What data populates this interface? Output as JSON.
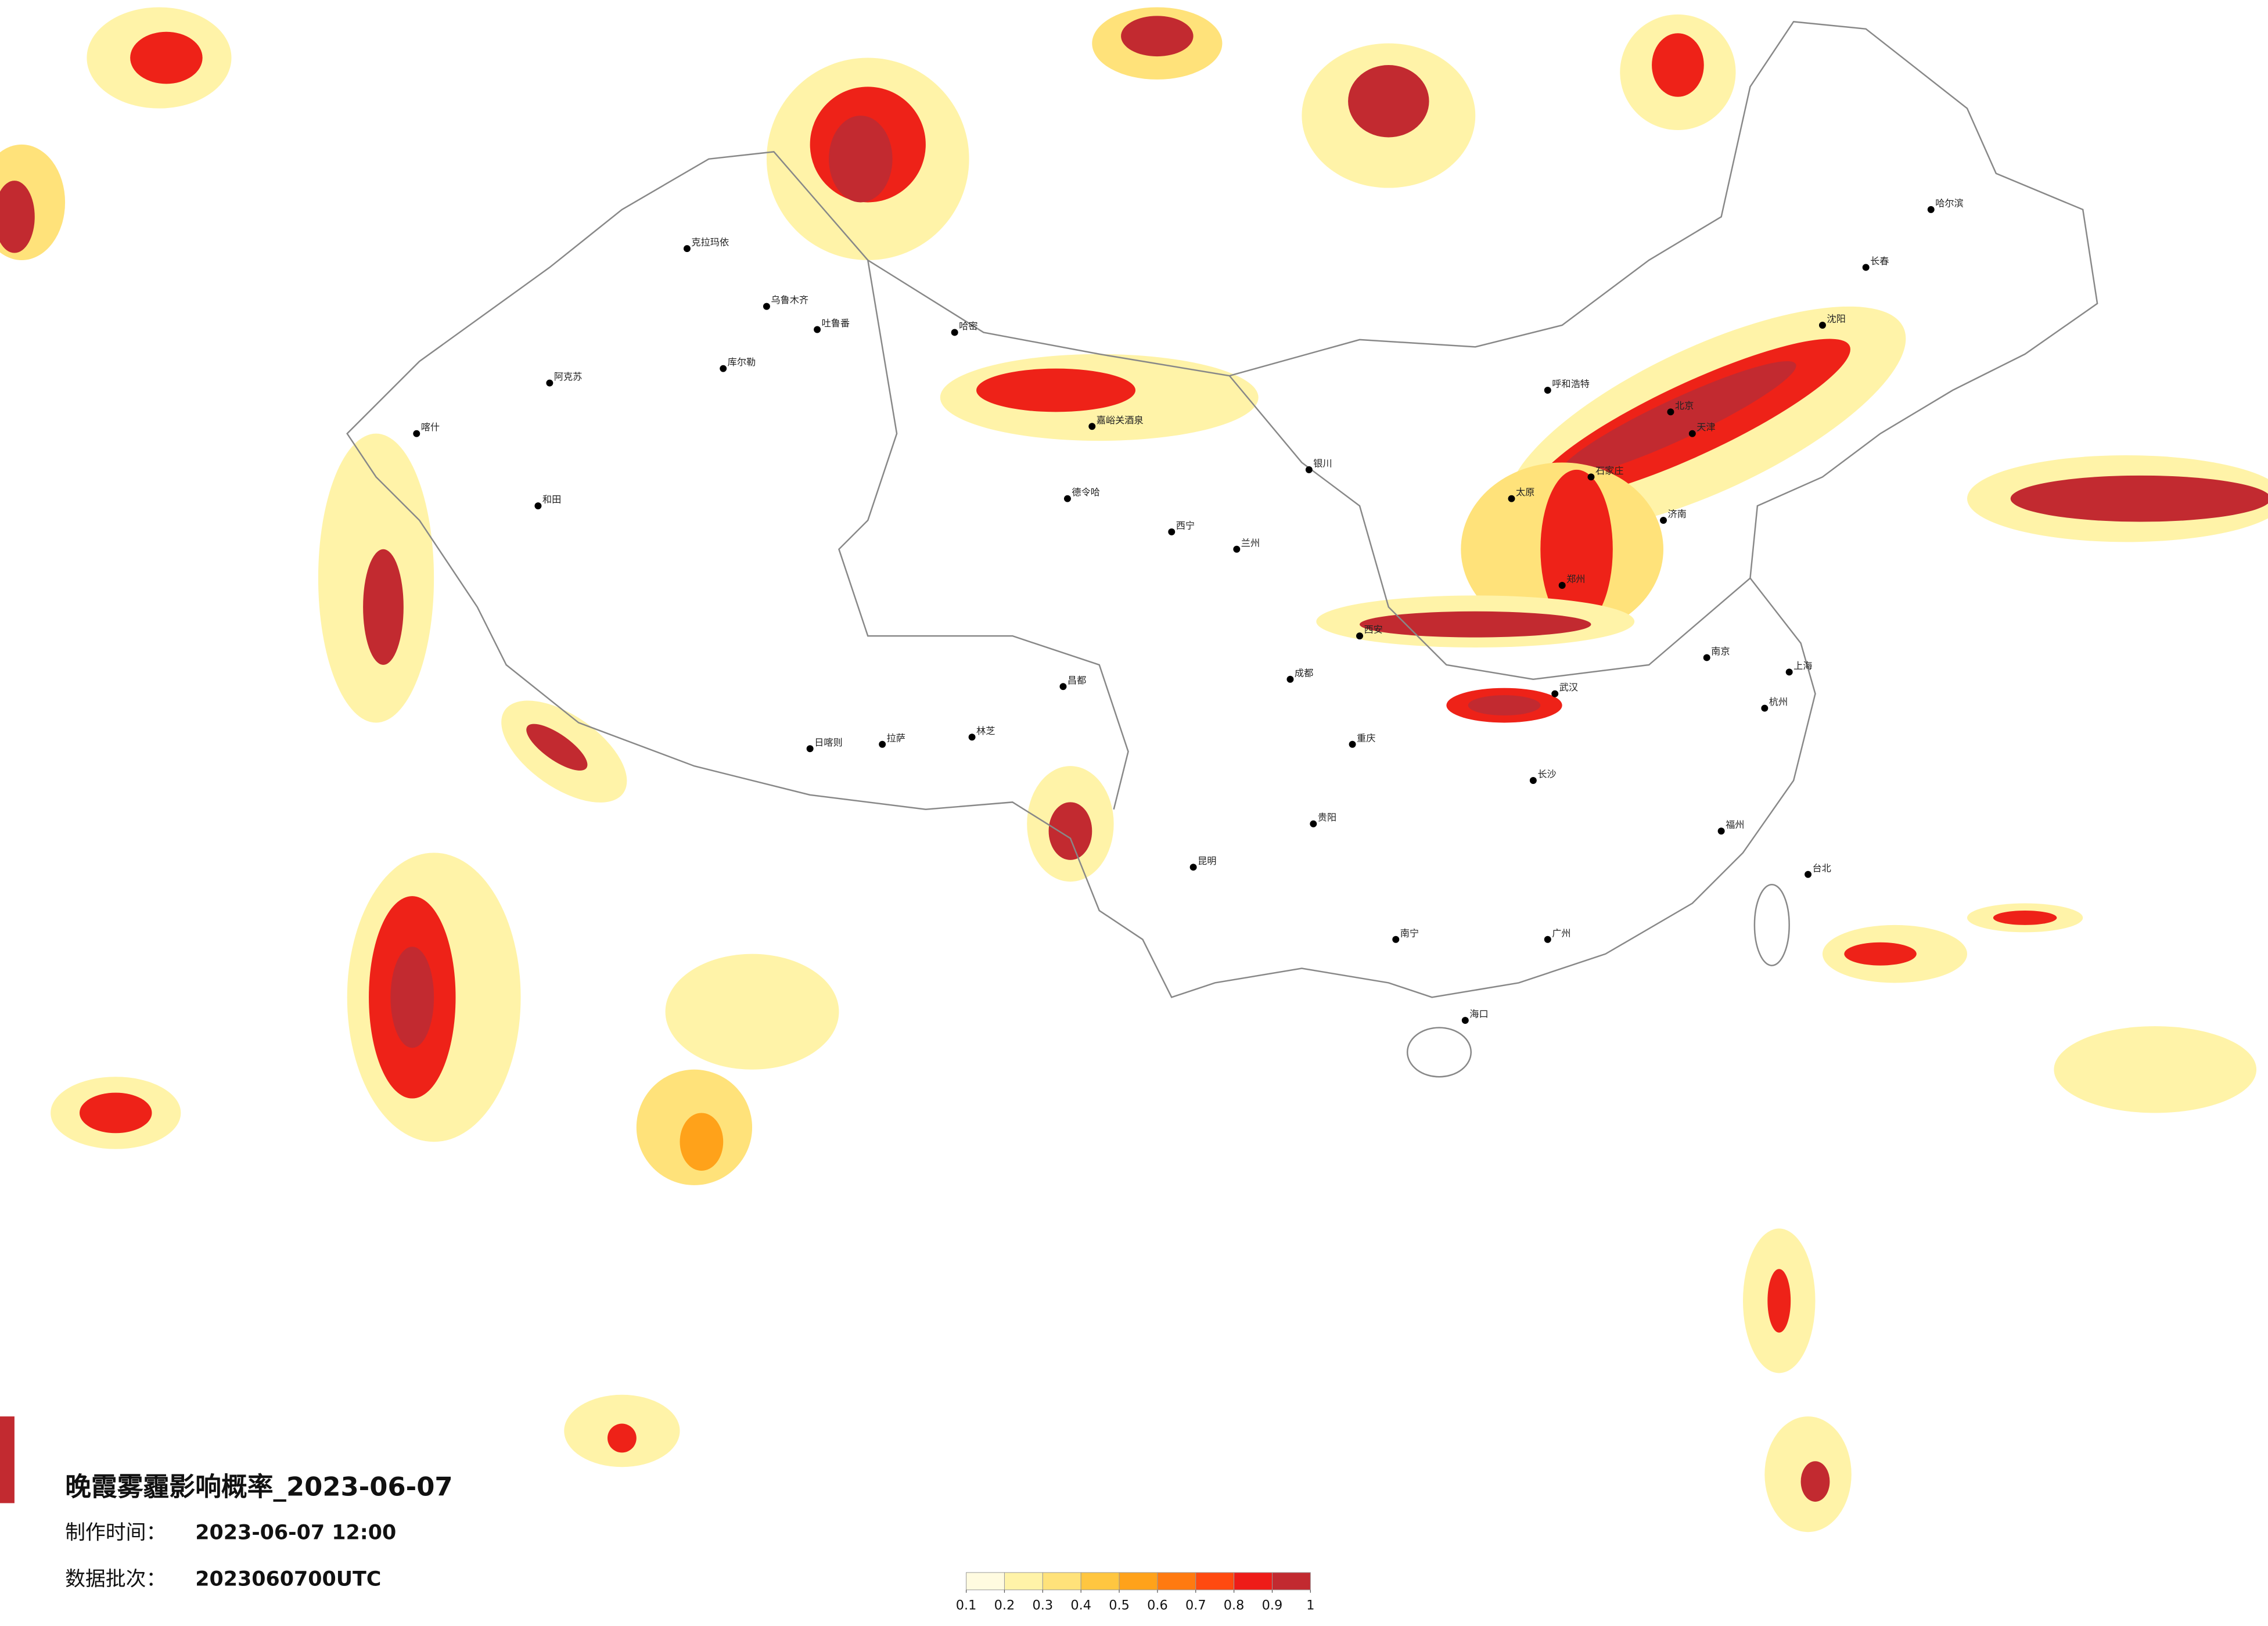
{
  "map": {
    "title": "晚霞雾霾影响概率_2023-06-07",
    "production_time": {
      "label": "制作时间：",
      "value": "2023-06-07 12:00"
    },
    "data_batch": {
      "label": "数据批次：",
      "value": "2023060700UTC"
    },
    "legend": {
      "ticks": [
        0.1,
        0.2,
        0.3,
        0.4,
        0.5,
        0.6,
        0.7,
        0.8,
        0.9,
        1
      ],
      "colors": [
        "#fffbe0",
        "#fff3a8",
        "#ffe27a",
        "#ffc640",
        "#ffa21a",
        "#ff7a10",
        "#ff4a10",
        "#ee1c18",
        "#c22a30"
      ]
    },
    "cities": [
      "克拉玛依",
      "乌鲁木齐",
      "吐鲁番",
      "库尔勒",
      "阿克苏",
      "喀什",
      "和田",
      "哈密",
      "嘉峪关酒泉",
      "德令哈",
      "西宁",
      "拉萨",
      "日喀则",
      "林芝",
      "昌都",
      "成都",
      "重庆",
      "昆明",
      "贵阳",
      "南宁",
      "广州",
      "海口",
      "福州",
      "台北",
      "上海",
      "南京",
      "杭州",
      "武汉",
      "长沙",
      "郑州",
      "西安",
      "北京",
      "天津",
      "沈阳",
      "长春",
      "哈尔滨",
      "呼和浩特",
      "银川",
      "兰州",
      "济南",
      "石家庄",
      "太原"
    ]
  }
}
